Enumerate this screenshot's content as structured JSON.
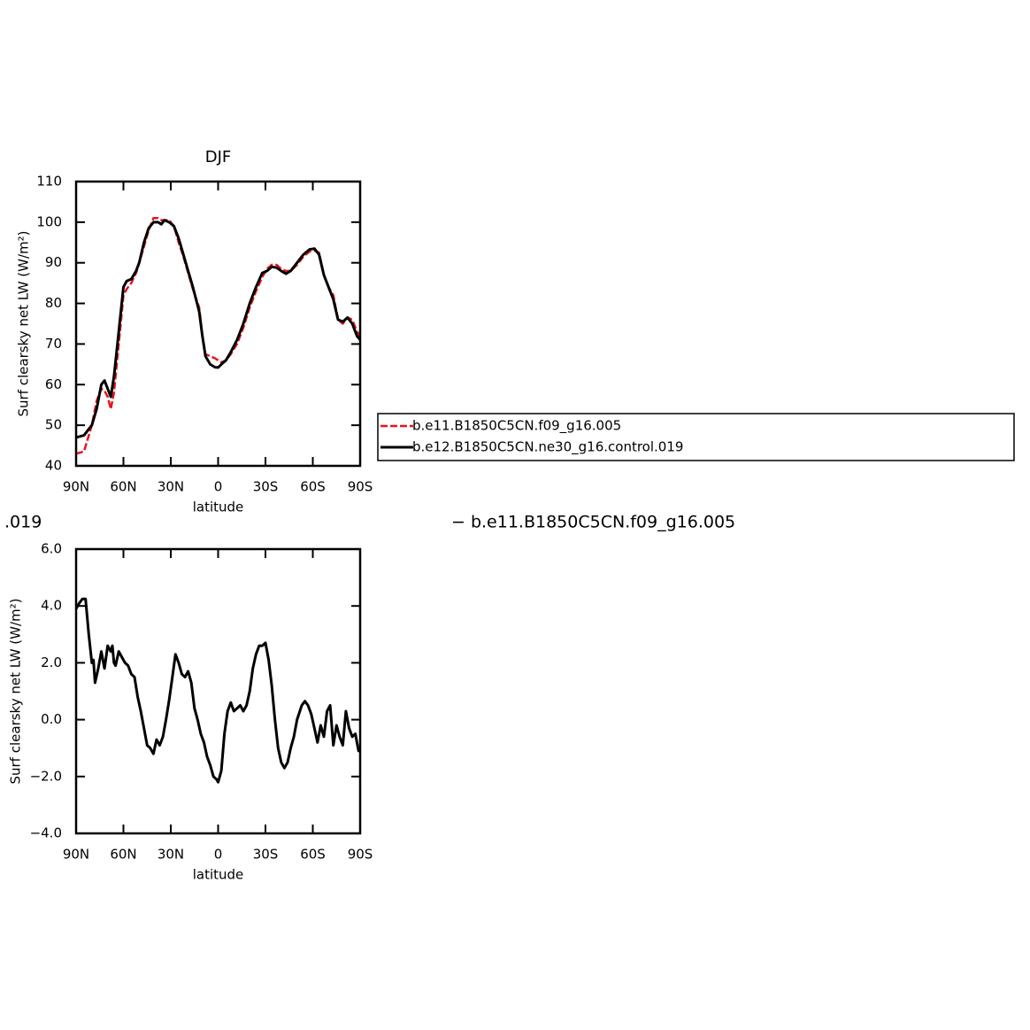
{
  "chart_data": [
    {
      "type": "line",
      "title": "DJF",
      "xlabel": "latitude",
      "ylabel": "Surf clearsky net LW (W/m²)",
      "xlim": [
        90,
        -90
      ],
      "xticks": [
        {
          "value": 90,
          "label": "90N"
        },
        {
          "value": 60,
          "label": "60N"
        },
        {
          "value": 30,
          "label": "30N"
        },
        0,
        {
          "value": -30,
          "label": "30S"
        },
        {
          "value": -60,
          "label": "60S"
        },
        {
          "value": -90,
          "label": "90S"
        }
      ],
      "ylim": [
        40,
        110
      ],
      "yticks": [
        40,
        50,
        60,
        70,
        80,
        90,
        100,
        110
      ],
      "legend": "outside-right",
      "x": [
        90,
        85,
        80,
        77,
        74,
        72,
        70,
        68,
        66,
        63,
        60,
        58,
        55,
        52,
        50,
        47,
        44,
        41,
        38,
        36,
        34,
        31,
        28,
        25,
        22,
        19,
        16,
        12,
        10,
        8,
        5,
        2,
        0,
        -2,
        -5,
        -8,
        -12,
        -16,
        -20,
        -24,
        -28,
        -31,
        -34,
        -37,
        -40,
        -43,
        -46,
        -50,
        -54,
        -58,
        -61,
        -64,
        -67,
        -70,
        -73,
        -76,
        -79,
        -82,
        -85,
        -88,
        -90
      ],
      "series": [
        {
          "name": "b.e11.B1850C5CN.f09_g16.005",
          "color": "#e8141c",
          "dash": true,
          "values": [
            43,
            43.5,
            50,
            56,
            59,
            58.5,
            57,
            54,
            58,
            70,
            82,
            83.5,
            85,
            87.5,
            90,
            94,
            98,
            101,
            101,
            100.5,
            100.5,
            100.5,
            99,
            95,
            91.5,
            87.5,
            83.5,
            79,
            72,
            67.5,
            67,
            66.5,
            66,
            65.5,
            66,
            67.5,
            70,
            74,
            79,
            83,
            86.5,
            88.5,
            89.5,
            89.5,
            88.5,
            88,
            88,
            89.5,
            91.5,
            92.8,
            93,
            92.5,
            87,
            84,
            82,
            76,
            75,
            76.5,
            76,
            73,
            72
          ]
        },
        {
          "name": "b.e12.B1850C5CN.ne30_g16.control.019",
          "color": "#000000",
          "dash": false,
          "values": [
            47,
            47.5,
            50,
            54,
            60,
            61,
            59,
            57,
            62,
            73,
            84,
            85.5,
            86,
            88,
            90,
            95,
            98.5,
            100,
            100,
            99.5,
            100.5,
            100,
            99,
            96,
            92,
            88,
            84,
            78,
            72,
            67,
            65,
            64.3,
            64.2,
            65,
            66,
            68,
            71,
            75,
            80,
            84,
            87.5,
            88,
            89,
            88.8,
            88,
            87.3,
            88,
            90,
            92,
            93.3,
            93.5,
            92,
            87,
            84,
            81,
            76,
            75.5,
            76.5,
            75,
            72,
            71
          ]
        }
      ]
    },
    {
      "type": "line",
      "title_fragments": [
        ".019",
        "− b.e11.B1850C5CN.f09_g16.005"
      ],
      "xlabel": "latitude",
      "ylabel": "Surf clearsky net LW (W/m²)",
      "xlim": [
        90,
        -90
      ],
      "xticks": [
        {
          "value": 90,
          "label": "90N"
        },
        {
          "value": 60,
          "label": "60N"
        },
        {
          "value": 30,
          "label": "30N"
        },
        0,
        {
          "value": -30,
          "label": "30S"
        },
        {
          "value": -60,
          "label": "60S"
        },
        {
          "value": -90,
          "label": "90S"
        }
      ],
      "ylim": [
        -4,
        6
      ],
      "yticks": [
        {
          "value": -4,
          "label": "−4.0"
        },
        {
          "value": -2,
          "label": "−2.0"
        },
        {
          "value": 0,
          "label": "0.0"
        },
        {
          "value": 2,
          "label": "2.0"
        },
        {
          "value": 4,
          "label": "4.0"
        },
        {
          "value": 6,
          "label": "6.0"
        }
      ],
      "x": [
        90,
        88,
        86,
        84,
        82,
        80,
        79,
        78,
        76,
        74,
        72,
        70,
        68,
        67,
        66,
        65,
        63,
        61,
        59,
        57,
        55,
        53,
        51,
        49,
        47,
        45,
        43,
        41,
        39,
        37,
        35,
        33,
        31,
        29,
        27,
        25,
        23,
        21,
        19,
        17,
        15,
        13,
        11,
        9,
        7,
        5,
        3,
        1,
        0,
        -2,
        -4,
        -6,
        -8,
        -10,
        -12,
        -14,
        -16,
        -18,
        -20,
        -22,
        -24,
        -26,
        -28,
        -30,
        -32,
        -34,
        -36,
        -38,
        -40,
        -42,
        -44,
        -46,
        -48,
        -50,
        -53,
        -55,
        -57,
        -59,
        -61,
        -63,
        -65,
        -67,
        -69,
        -71,
        -73,
        -75,
        -77,
        -79,
        -81,
        -83,
        -85,
        -87,
        -89,
        -90
      ],
      "series": [
        {
          "color": "#000000",
          "dash": false,
          "values": [
            3.9,
            4.1,
            4.25,
            4.25,
            3,
            2,
            2.1,
            1.3,
            1.8,
            2.4,
            1.8,
            2.6,
            2.4,
            2.6,
            2.0,
            1.9,
            2.4,
            2.2,
            2.0,
            1.9,
            1.6,
            1.5,
            0.8,
            0.3,
            -0.3,
            -0.9,
            -1.0,
            -1.2,
            -0.7,
            -0.9,
            -0.6,
            0.0,
            0.7,
            1.5,
            2.3,
            2.0,
            1.6,
            1.5,
            1.7,
            1.3,
            0.4,
            0.0,
            -0.5,
            -0.8,
            -1.3,
            -1.6,
            -2.0,
            -2.1,
            -2.2,
            -1.8,
            -0.5,
            0.3,
            0.6,
            0.3,
            0.4,
            0.5,
            0.3,
            0.5,
            1.0,
            1.8,
            2.3,
            2.6,
            2.6,
            2.7,
            2.1,
            1.2,
            0.0,
            -1.0,
            -1.5,
            -1.7,
            -1.5,
            -1.0,
            -0.6,
            0.0,
            0.5,
            0.65,
            0.5,
            0.2,
            -0.3,
            -0.8,
            -0.2,
            -0.6,
            0.3,
            0.5,
            -0.9,
            -0.2,
            -0.6,
            -0.9,
            0.3,
            -0.3,
            -0.6,
            -0.5,
            -1.1,
            -1.0
          ]
        }
      ]
    }
  ]
}
